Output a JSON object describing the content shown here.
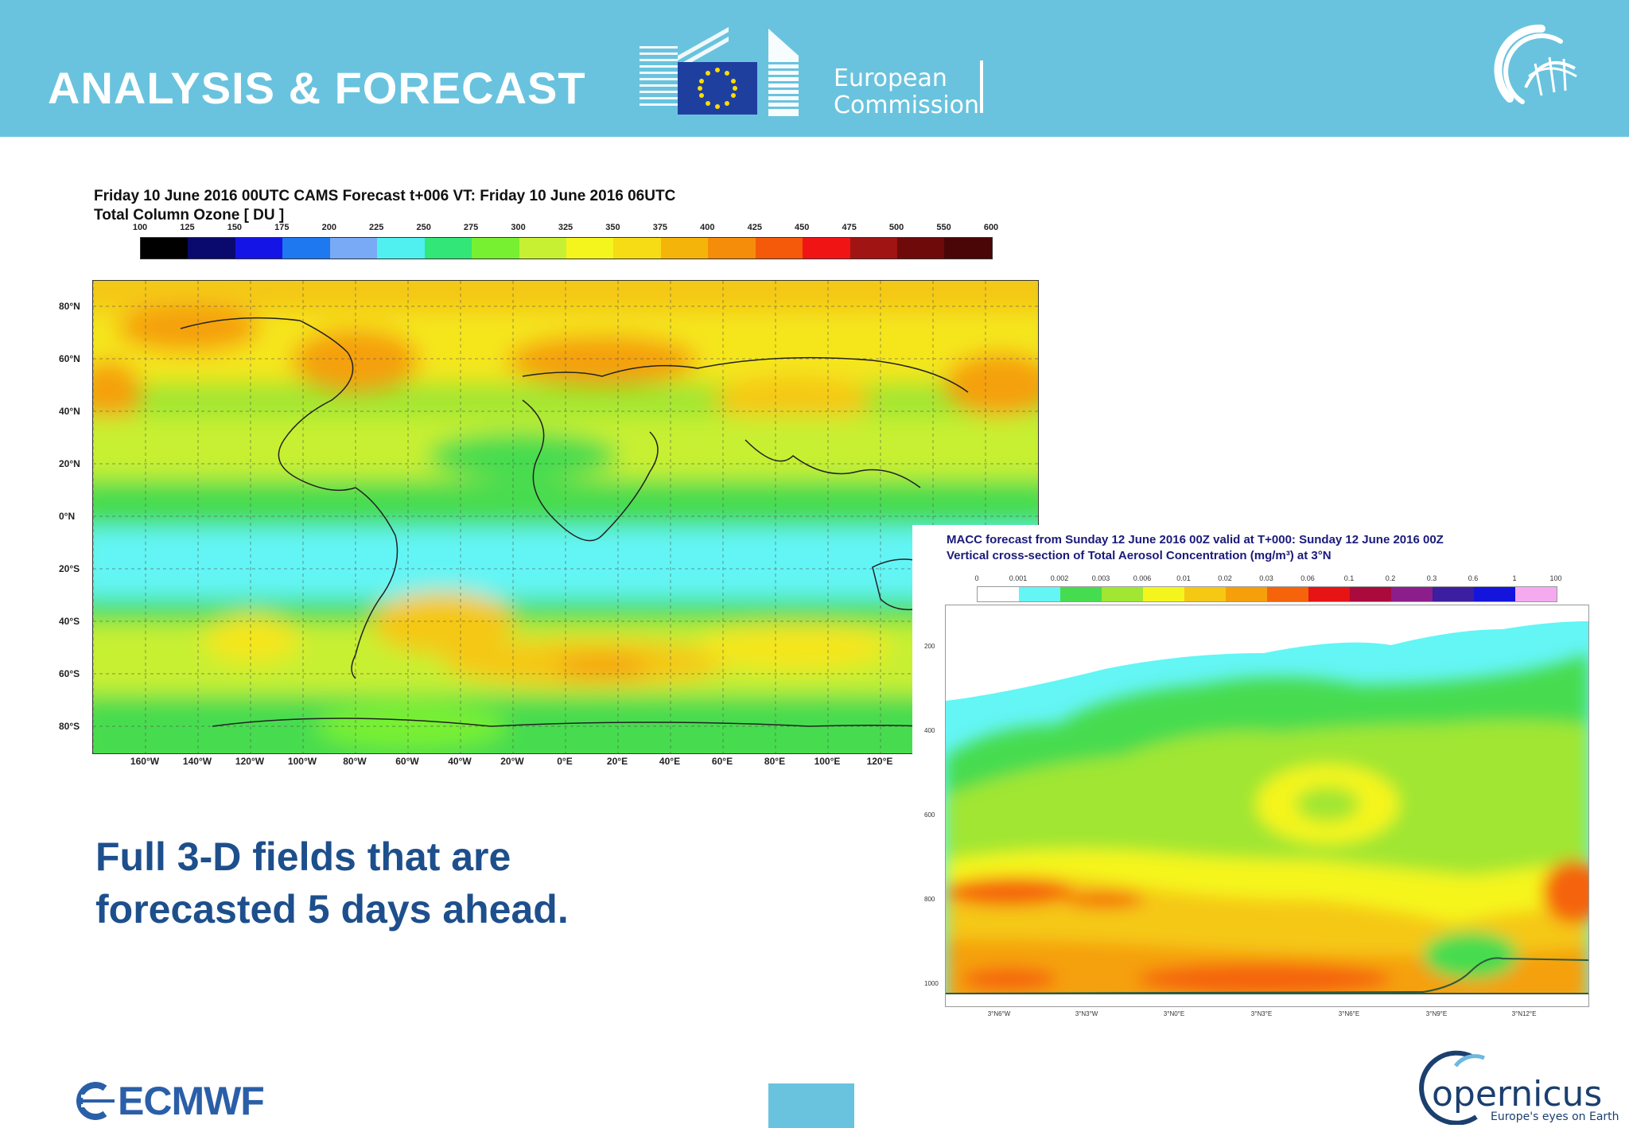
{
  "header": {
    "title": "ANALYSIS & FORECAST",
    "ec_line1": "European",
    "ec_line2": "Commission",
    "bg_color": "#69c3de"
  },
  "ozone_chart": {
    "title": "Friday 10 June 2016 00UTC CAMS Forecast t+006 VT: Friday 10 June 2016 06UTC",
    "subtitle": "Total Column Ozone [ DU ]",
    "colorbar_ticks": [
      "100",
      "125",
      "150",
      "175",
      "200",
      "225",
      "250",
      "275",
      "300",
      "325",
      "350",
      "375",
      "400",
      "425",
      "450",
      "475",
      "500",
      "550",
      "600"
    ],
    "colorbar_colors": [
      "#000000",
      "#0a0a6e",
      "#1414e6",
      "#1e78f0",
      "#78aaf5",
      "#50f0f0",
      "#32e678",
      "#78f032",
      "#c8f032",
      "#f5f51e",
      "#f5dc14",
      "#f5b40a",
      "#f58c0a",
      "#f55a0a",
      "#f01414",
      "#a01414",
      "#6e0a0a",
      "#4a0606"
    ],
    "lat_labels": [
      "80°N",
      "60°N",
      "40°N",
      "20°N",
      "0°N",
      "20°S",
      "40°S",
      "60°S",
      "80°S"
    ],
    "lon_labels": [
      "160°W",
      "140°W",
      "120°W",
      "100°W",
      "80°W",
      "60°W",
      "40°W",
      "20°W",
      "0°E",
      "20°E",
      "40°E",
      "60°E",
      "80°E",
      "100°E",
      "120°E"
    ]
  },
  "aerosol_chart": {
    "title": "MACC forecast from Sunday 12 June 2016 00Z valid at T+000: Sunday 12 June 2016 00Z",
    "subtitle": "Vertical cross-section of Total Aerosol Concentration (mg/m³) at 3°N",
    "colorbar_ticks": [
      "0",
      "0.001",
      "0.002",
      "0.003",
      "0.006",
      "0.01",
      "0.02",
      "0.03",
      "0.06",
      "0.1",
      "0.2",
      "0.3",
      "0.6",
      "1",
      "100"
    ],
    "colorbar_colors": [
      "#ffffff",
      "#64f5f5",
      "#46dc50",
      "#a0e632",
      "#f5f51e",
      "#f5c814",
      "#f5a00a",
      "#f5640a",
      "#e61414",
      "#aa0a3c",
      "#8c1e8c",
      "#3c1ea0",
      "#1414dc",
      "#f5aaf0"
    ],
    "y_labels": [
      "200",
      "400",
      "600",
      "800",
      "1000"
    ],
    "x_labels": [
      "3°N6°W",
      "3°N3°W",
      "3°N0°E",
      "3°N3°E",
      "3°N6°E",
      "3°N9°E",
      "3°N12°E"
    ]
  },
  "caption": {
    "line1": "Full 3-D fields that are",
    "line2": "forecasted 5 days ahead."
  },
  "footer": {
    "ecmwf": "ECMWF",
    "copernicus": "opernicus",
    "copernicus_sub": "Europe's eyes on Earth"
  }
}
